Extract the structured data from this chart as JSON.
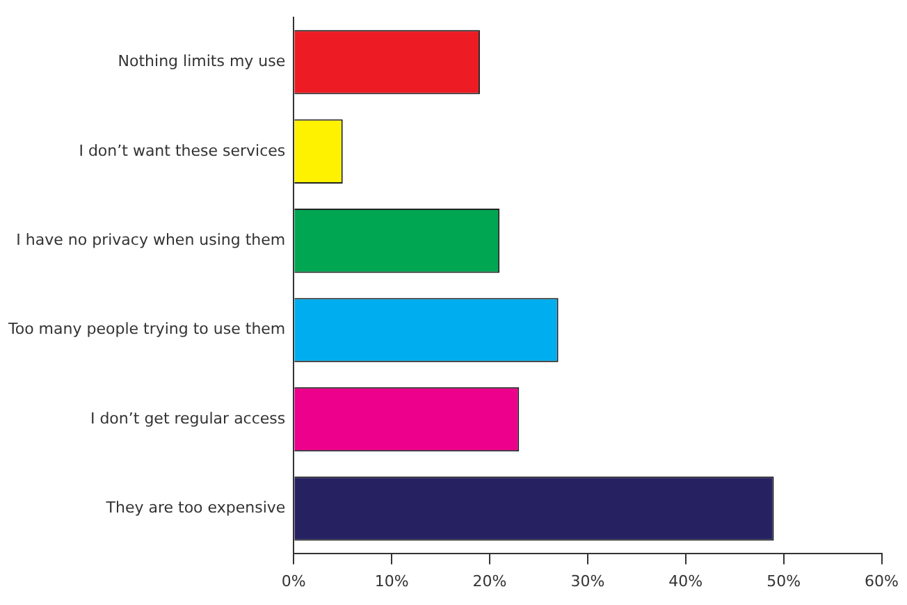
{
  "chart_data": {
    "type": "bar",
    "orientation": "horizontal",
    "categories": [
      "Nothing limits my use",
      "I don’t want these services",
      "I have no privacy when using them",
      "Too many people trying to use them",
      "I don’t get regular access",
      "They are too expensive"
    ],
    "values": [
      19,
      5,
      21,
      27,
      23,
      49
    ],
    "colors": [
      "#ed1c24",
      "#fff200",
      "#00a651",
      "#00aeef",
      "#ec008c",
      "#262262"
    ],
    "xlim": [
      0,
      60
    ],
    "xticks": [
      {
        "value": 0,
        "label": "0%"
      },
      {
        "value": 10,
        "label": "10%"
      },
      {
        "value": 20,
        "label": "20%"
      },
      {
        "value": 30,
        "label": "30%"
      },
      {
        "value": 40,
        "label": "40%"
      },
      {
        "value": 50,
        "label": "50%"
      },
      {
        "value": 60,
        "label": "60%"
      }
    ],
    "grid": false,
    "legend": false
  }
}
